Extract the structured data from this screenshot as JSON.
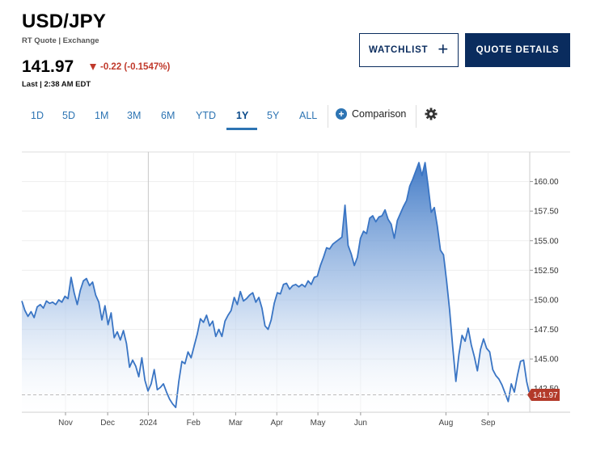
{
  "header": {
    "symbol": "USD/JPY",
    "quote_source": "RT Quote | Exchange",
    "price": "141.97",
    "change": "-0.22 (-0.1547%)",
    "last_time": "Last | 2:38 AM EDT",
    "change_color": "#c0392b"
  },
  "buttons": {
    "watchlist": "WATCHLIST",
    "quote_details": "QUOTE DETAILS"
  },
  "ranges": {
    "tabs": [
      "1D",
      "5D",
      "1M",
      "3M",
      "6M",
      "YTD",
      "1Y",
      "5Y",
      "ALL"
    ],
    "active": "1Y",
    "comparison_label": "Comparison"
  },
  "colors": {
    "brand_navy": "#0a2c5e",
    "accent_blue": "#2d74b3",
    "line": "#3a75c4",
    "price_flag": "#b33a2a"
  },
  "chart_data": {
    "type": "area",
    "x_labels": [
      "Nov",
      "Dec",
      "2024",
      "Feb",
      "Mar",
      "Apr",
      "May",
      "Jun",
      "Aug",
      "Sep"
    ],
    "y_ticks": [
      145.0,
      147.5,
      150.0,
      152.5,
      155.0,
      157.5,
      160.0
    ],
    "y_tick_labels": [
      "145.00",
      "147.50",
      "150.00",
      "152.50",
      "155.00",
      "157.50",
      "160.00"
    ],
    "partially_hidden_tick_label": "142.50",
    "ylim": [
      140.5,
      162.5
    ],
    "current_value": 141.97,
    "current_label": "141.97",
    "grid": true,
    "series": [
      {
        "values": [
          149.9,
          149.1,
          148.6,
          149.0,
          148.5,
          149.4,
          149.6,
          149.3,
          149.9,
          149.7,
          149.8,
          149.6,
          150.0,
          149.8,
          150.3,
          150.1,
          151.9,
          150.6,
          149.6,
          150.8,
          151.6,
          151.8,
          151.2,
          151.5,
          150.4,
          149.8,
          148.3,
          149.5,
          147.9,
          148.9,
          146.8,
          147.3,
          146.6,
          147.4,
          146.3,
          144.3,
          144.9,
          144.4,
          143.5,
          145.1,
          143.2,
          142.3,
          142.9,
          144.1,
          142.4,
          142.6,
          142.9,
          142.2,
          141.6,
          141.2,
          140.9,
          143.1,
          144.8,
          144.6,
          145.6,
          145.1,
          146.1,
          147.1,
          148.4,
          148.1,
          148.7,
          147.8,
          148.2,
          146.9,
          147.5,
          146.9,
          148.2,
          148.7,
          149.1,
          150.2,
          149.6,
          150.7,
          149.9,
          150.1,
          150.4,
          150.6,
          149.8,
          150.2,
          149.3,
          147.8,
          147.5,
          148.3,
          149.7,
          150.6,
          150.5,
          151.3,
          151.4,
          150.9,
          151.2,
          151.3,
          151.1,
          151.3,
          151.1,
          151.6,
          151.3,
          151.9,
          152.0,
          152.9,
          153.6,
          154.4,
          154.3,
          154.7,
          154.9,
          155.1,
          155.3,
          158.0,
          154.6,
          153.9,
          152.9,
          153.6,
          155.2,
          155.8,
          155.6,
          156.9,
          157.1,
          156.6,
          157.0,
          157.1,
          157.6,
          156.8,
          156.4,
          155.2,
          156.7,
          157.3,
          157.9,
          158.4,
          159.6,
          160.2,
          160.9,
          161.6,
          160.5,
          161.6,
          159.6,
          157.4,
          157.8,
          156.2,
          154.2,
          153.8,
          151.6,
          149.1,
          146.0,
          143.1,
          145.4,
          147.0,
          146.5,
          147.6,
          146.2,
          145.2,
          144.0,
          145.8,
          146.7,
          145.9,
          145.6,
          144.1,
          143.6,
          143.3,
          142.8,
          142.1,
          141.4,
          142.9,
          142.2,
          143.6,
          144.8,
          144.9,
          143.1,
          141.97
        ]
      }
    ]
  }
}
